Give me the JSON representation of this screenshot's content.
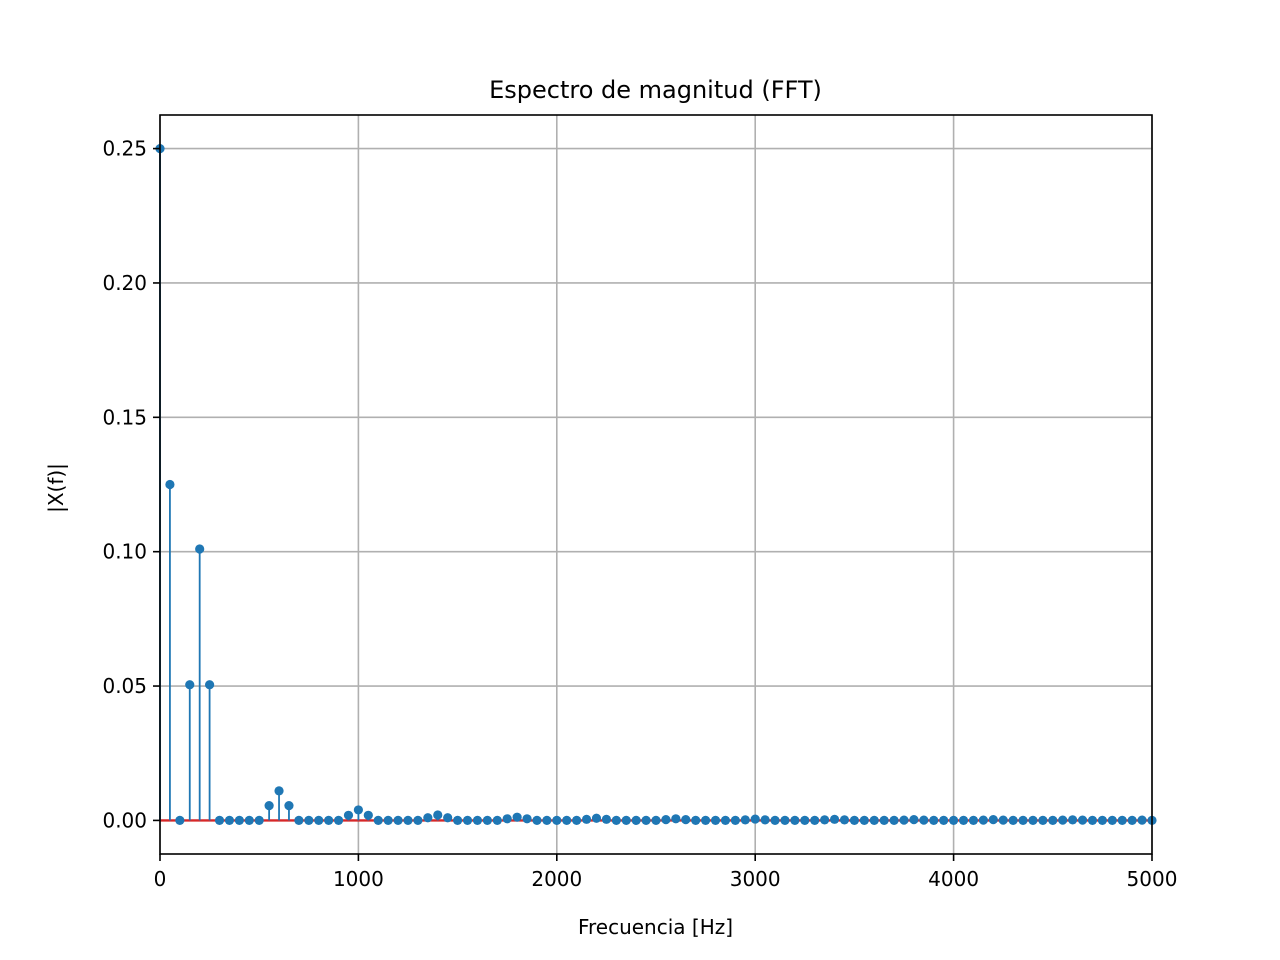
{
  "chart_data": {
    "type": "stem",
    "title": "Espectro de magnitud (FFT)",
    "xlabel": "Frecuencia [Hz]",
    "ylabel": "|X(f)|",
    "xlim": [
      0,
      5000
    ],
    "ylim": [
      -0.0125,
      0.2625
    ],
    "grid": true,
    "x_ticks": [
      0,
      1000,
      2000,
      3000,
      4000,
      5000
    ],
    "x_tick_labels": [
      "0",
      "1000",
      "2000",
      "3000",
      "4000",
      "5000"
    ],
    "y_ticks": [
      0,
      0.05,
      0.1,
      0.15,
      0.2,
      0.25
    ],
    "y_tick_labels": [
      "0.00",
      "0.05",
      "0.10",
      "0.15",
      "0.20",
      "0.25"
    ],
    "x_step": 50,
    "values": [
      0.25,
      0.125,
      0.0,
      0.0505,
      0.101,
      0.0505,
      0.0,
      0.0,
      0.0,
      0.0,
      0.0,
      0.0055,
      0.011,
      0.0055,
      0.0,
      0.0,
      0.0,
      0.0,
      0.0,
      0.0019,
      0.0039,
      0.0019,
      0.0,
      0.0,
      0.0,
      0.0,
      0.0,
      0.001,
      0.002,
      0.001,
      0.0,
      0.0,
      0.0,
      0.0,
      0.0,
      0.0006,
      0.0012,
      0.0006,
      0.0,
      0.0,
      0.0,
      0.0,
      0.0,
      0.0004,
      0.0008,
      0.0004,
      0.0,
      0.0,
      0.0,
      0.0,
      0.0,
      0.0003,
      0.0006,
      0.0003,
      0.0,
      0.0,
      0.0,
      0.0,
      0.0,
      0.0002,
      0.0005,
      0.0002,
      0.0,
      0.0,
      0.0,
      0.0,
      0.0,
      0.0002,
      0.0004,
      0.0002,
      0.0,
      0.0,
      0.0,
      0.0,
      0.0,
      0.0001,
      0.0003,
      0.0001,
      0.0,
      0.0,
      0.0,
      0.0,
      0.0,
      0.0001,
      0.0003,
      0.0001,
      0.0,
      0.0,
      0.0,
      0.0,
      0.0,
      0.0001,
      0.0002,
      0.0001,
      0.0,
      0.0,
      0.0,
      0.0,
      0.0,
      0.0001,
      0.0
    ],
    "colors": {
      "stem": "#1f77b4",
      "baseline": "#d62728",
      "grid": "#b0b0b0",
      "axes": "#000000"
    }
  }
}
